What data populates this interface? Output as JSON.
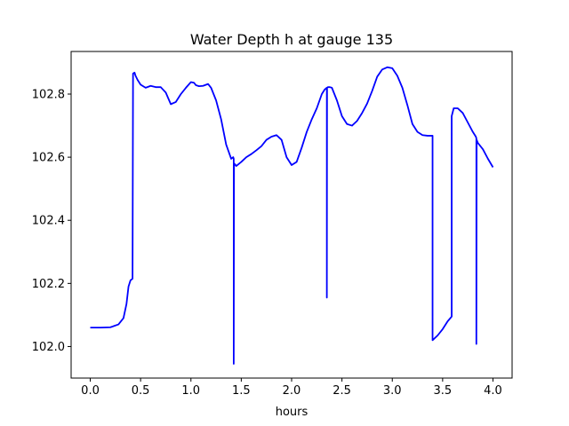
{
  "chart_data": {
    "type": "line",
    "title": "Water Depth h at gauge 135",
    "xlabel": "hours",
    "ylabel": "",
    "xlim": [
      -0.19,
      4.19
    ],
    "ylim": [
      101.9,
      102.935
    ],
    "xticks": [
      0.0,
      0.5,
      1.0,
      1.5,
      2.0,
      2.5,
      3.0,
      3.5,
      4.0
    ],
    "xtick_labels": [
      "0.0",
      "0.5",
      "1.0",
      "1.5",
      "2.0",
      "2.5",
      "3.0",
      "3.5",
      "4.0"
    ],
    "yticks": [
      102.0,
      102.2,
      102.4,
      102.6,
      102.8
    ],
    "ytick_labels": [
      "102.0",
      "102.2",
      "102.4",
      "102.6",
      "102.8"
    ],
    "grid": false,
    "line_color": "#0000ff",
    "series": [
      {
        "x": [
          0.0,
          0.1,
          0.2,
          0.28,
          0.33,
          0.36,
          0.38,
          0.4,
          0.42,
          0.425,
          0.425,
          0.44,
          0.45,
          0.47,
          0.5,
          0.55,
          0.6,
          0.65,
          0.7,
          0.75,
          0.8,
          0.85,
          0.9,
          0.95,
          1.0,
          1.03,
          1.05,
          1.08,
          1.12,
          1.17,
          1.2,
          1.25,
          1.3,
          1.35,
          1.4,
          1.42,
          1.425,
          1.425,
          1.428,
          1.43,
          1.45,
          1.5,
          1.55,
          1.6,
          1.65,
          1.7,
          1.75,
          1.8,
          1.85,
          1.9,
          1.95,
          2.0,
          2.05,
          2.1,
          2.15,
          2.2,
          2.25,
          2.3,
          2.33,
          2.35,
          2.35,
          2.352,
          2.36,
          2.38,
          2.4,
          2.45,
          2.5,
          2.55,
          2.6,
          2.65,
          2.7,
          2.75,
          2.8,
          2.85,
          2.9,
          2.95,
          3.0,
          3.05,
          3.1,
          3.15,
          3.2,
          3.25,
          3.3,
          3.35,
          3.4,
          3.4,
          3.45,
          3.5,
          3.55,
          3.59,
          3.59,
          3.61,
          3.65,
          3.7,
          3.75,
          3.8,
          3.83,
          3.835,
          3.835,
          3.838,
          3.85,
          3.9,
          3.95,
          4.0
        ],
        "y": [
          102.06,
          102.06,
          102.061,
          102.07,
          102.09,
          102.135,
          102.19,
          102.21,
          102.215,
          102.865,
          102.865,
          102.868,
          102.858,
          102.845,
          102.83,
          102.82,
          102.826,
          102.822,
          102.822,
          102.805,
          102.768,
          102.775,
          102.8,
          102.82,
          102.838,
          102.836,
          102.828,
          102.825,
          102.826,
          102.832,
          102.82,
          102.78,
          102.72,
          102.64,
          102.595,
          102.6,
          102.595,
          101.945,
          102.58,
          102.58,
          102.572,
          102.585,
          102.6,
          102.61,
          102.622,
          102.635,
          102.655,
          102.665,
          102.67,
          102.655,
          102.6,
          102.575,
          102.585,
          102.63,
          102.68,
          102.72,
          102.755,
          102.8,
          102.815,
          102.82,
          102.155,
          102.82,
          102.822,
          102.822,
          102.82,
          102.78,
          102.73,
          102.705,
          102.7,
          102.715,
          102.74,
          102.77,
          102.81,
          102.855,
          102.878,
          102.885,
          102.882,
          102.858,
          102.82,
          102.765,
          102.705,
          102.68,
          102.67,
          102.668,
          102.668,
          102.02,
          102.035,
          102.055,
          102.08,
          102.095,
          102.73,
          102.755,
          102.755,
          102.74,
          102.71,
          102.68,
          102.665,
          102.66,
          102.008,
          102.655,
          102.645,
          102.625,
          102.595,
          102.568
        ]
      }
    ]
  }
}
